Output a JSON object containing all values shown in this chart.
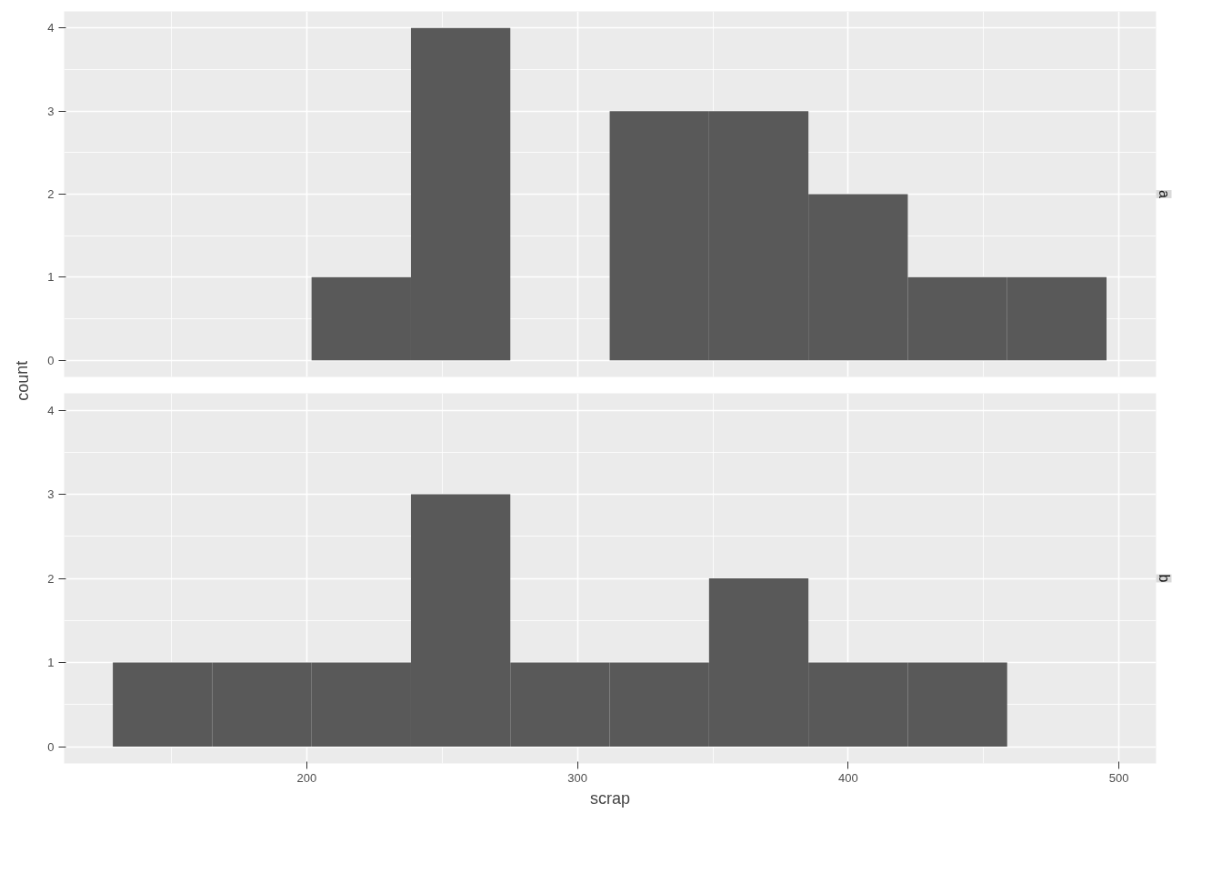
{
  "chart_data": [
    {
      "type": "histogram",
      "title": "a",
      "ylabel": "count",
      "bins": [
        128.4,
        165.1,
        201.8,
        238.5,
        275.2,
        311.9,
        348.6,
        385.3,
        422.0,
        458.7,
        495.4
      ],
      "values": [
        0,
        0,
        1,
        4,
        0,
        3,
        3,
        2,
        1,
        1
      ],
      "color": "#595959",
      "xlim": [
        110.4,
        513.7
      ],
      "xticks": [
        200,
        300,
        400,
        500
      ],
      "ylim": [
        -0.2,
        4.2
      ],
      "yticks": [
        0,
        1,
        2,
        3,
        4
      ],
      "grid": true,
      "tick_labels": "y"
    },
    {
      "type": "histogram",
      "title": "b",
      "xlabel": "scrap",
      "bins": [
        128.4,
        165.1,
        201.8,
        238.5,
        275.2,
        311.9,
        348.6,
        385.3,
        422.0,
        458.7,
        495.4
      ],
      "values": [
        1,
        1,
        1,
        3,
        1,
        1,
        2,
        1,
        1,
        0
      ],
      "color": "#595959",
      "xlim": [
        110.4,
        513.7
      ],
      "xticks": [
        200,
        300,
        400,
        500
      ],
      "ylim": [
        -0.2,
        4.2
      ],
      "yticks": [
        0,
        1,
        2,
        3,
        4
      ],
      "grid": true
    }
  ]
}
